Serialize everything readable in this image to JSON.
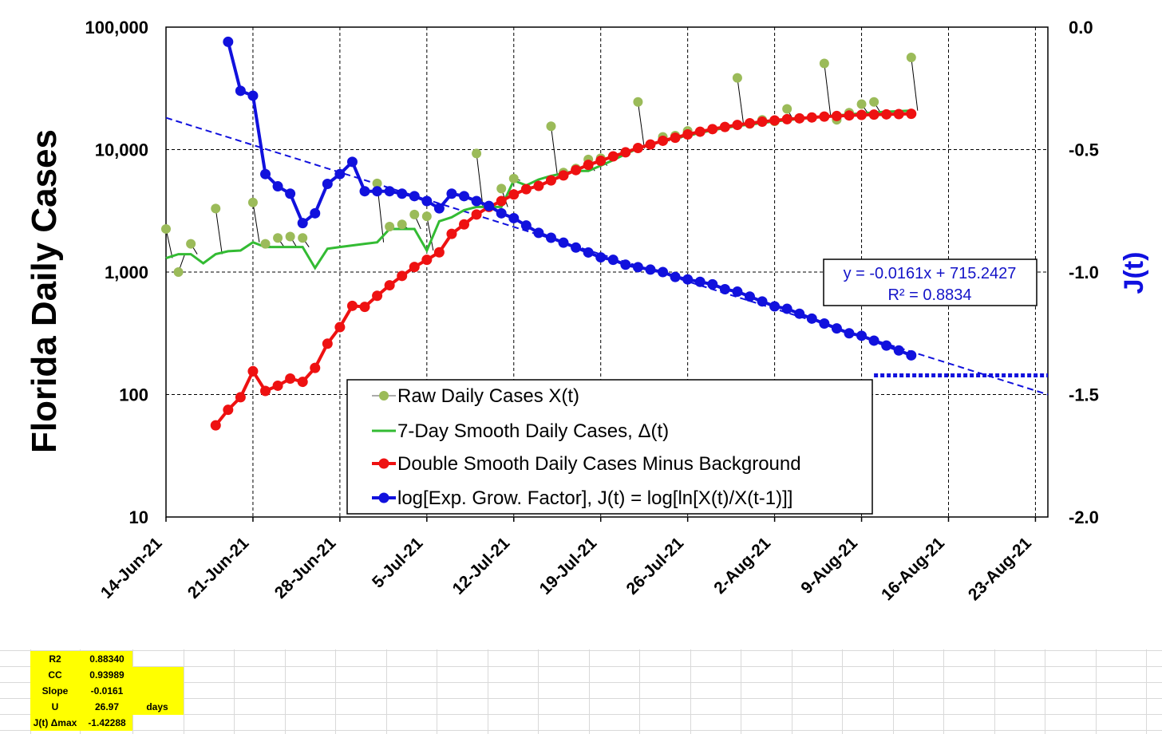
{
  "chart_data": {
    "type": "line",
    "ylabel": "Florida Daily Cases",
    "y2label": "J(t)",
    "y_scale": "log",
    "ylim": [
      10,
      100000
    ],
    "y_ticks": [
      "10",
      "100",
      "1,000",
      "10,000",
      "100,000"
    ],
    "y2lim": [
      -2.0,
      0.0
    ],
    "y2_ticks": [
      "-2.0",
      "-1.5",
      "-1.0",
      "-0.5",
      "0.0"
    ],
    "xlim": [
      "2021-06-14",
      "2021-08-24"
    ],
    "x_ticks": [
      "14-Jun-21",
      "21-Jun-21",
      "28-Jun-21",
      "5-Jul-21",
      "12-Jul-21",
      "19-Jul-21",
      "26-Jul-21",
      "2-Aug-21",
      "9-Aug-21",
      "16-Aug-21",
      "23-Aug-21"
    ],
    "grid": true,
    "legend_position": "bottom-center",
    "series": [
      {
        "name": "Raw Daily Cases X(t)",
        "color": "#9bbb59",
        "axis": "left",
        "points": [
          [
            "2021-06-14",
            2250
          ],
          [
            "2021-06-15",
            1000
          ],
          [
            "2021-06-16",
            1700
          ],
          [
            "2021-06-18",
            3300
          ],
          [
            "2021-06-21",
            3700
          ],
          [
            "2021-06-22",
            1700
          ],
          [
            "2021-06-23",
            1900
          ],
          [
            "2021-06-24",
            1950
          ],
          [
            "2021-06-25",
            1900
          ],
          [
            "2021-07-01",
            5300
          ],
          [
            "2021-07-02",
            2350
          ],
          [
            "2021-07-03",
            2450
          ],
          [
            "2021-07-04",
            2950
          ],
          [
            "2021-07-05",
            2850
          ],
          [
            "2021-07-09",
            9300
          ],
          [
            "2021-07-11",
            4800
          ],
          [
            "2021-07-12",
            5800
          ],
          [
            "2021-07-15",
            15500
          ],
          [
            "2021-07-16",
            6500
          ],
          [
            "2021-07-17",
            7000
          ],
          [
            "2021-07-18",
            8300
          ],
          [
            "2021-07-19",
            8500
          ],
          [
            "2021-07-22",
            24500
          ],
          [
            "2021-07-24",
            12700
          ],
          [
            "2021-07-25",
            13000
          ],
          [
            "2021-07-26",
            14200
          ],
          [
            "2021-07-30",
            38500
          ],
          [
            "2021-07-31",
            16200
          ],
          [
            "2021-08-01",
            17500
          ],
          [
            "2021-08-02",
            17000
          ],
          [
            "2021-08-03",
            21500
          ],
          [
            "2021-08-06",
            50500
          ],
          [
            "2021-08-07",
            17500
          ],
          [
            "2021-08-08",
            20000
          ],
          [
            "2021-08-09",
            23500
          ],
          [
            "2021-08-10",
            24500
          ],
          [
            "2021-08-13",
            56500
          ]
        ]
      },
      {
        "name": "7-Day Smooth Daily Cases, Δ(t)",
        "color": "#33bb33",
        "axis": "left",
        "points": [
          [
            "2021-06-14",
            1300
          ],
          [
            "2021-06-15",
            1400
          ],
          [
            "2021-06-16",
            1400
          ],
          [
            "2021-06-17",
            1180
          ],
          [
            "2021-06-18",
            1400
          ],
          [
            "2021-06-19",
            1480
          ],
          [
            "2021-06-20",
            1500
          ],
          [
            "2021-06-21",
            1750
          ],
          [
            "2021-06-22",
            1600
          ],
          [
            "2021-06-23",
            1600
          ],
          [
            "2021-06-24",
            1600
          ],
          [
            "2021-06-25",
            1600
          ],
          [
            "2021-06-26",
            1080
          ],
          [
            "2021-06-27",
            1550
          ],
          [
            "2021-06-28",
            1600
          ],
          [
            "2021-06-29",
            1650
          ],
          [
            "2021-06-30",
            1700
          ],
          [
            "2021-07-01",
            1750
          ],
          [
            "2021-07-02",
            2250
          ],
          [
            "2021-07-03",
            2250
          ],
          [
            "2021-07-04",
            2250
          ],
          [
            "2021-07-05",
            1500
          ],
          [
            "2021-07-06",
            2600
          ],
          [
            "2021-07-07",
            2800
          ],
          [
            "2021-07-08",
            3200
          ],
          [
            "2021-07-09",
            3400
          ],
          [
            "2021-07-10",
            3400
          ],
          [
            "2021-07-11",
            3400
          ],
          [
            "2021-07-12",
            5600
          ],
          [
            "2021-07-13",
            5100
          ],
          [
            "2021-07-14",
            5700
          ],
          [
            "2021-07-15",
            6100
          ],
          [
            "2021-07-16",
            6400
          ],
          [
            "2021-07-17",
            6700
          ],
          [
            "2021-07-18",
            6700
          ],
          [
            "2021-07-19",
            7400
          ],
          [
            "2021-07-20",
            8200
          ],
          [
            "2021-07-21",
            9200
          ],
          [
            "2021-07-22",
            10200
          ],
          [
            "2021-07-23",
            11000
          ],
          [
            "2021-07-24",
            11700
          ],
          [
            "2021-07-25",
            12400
          ],
          [
            "2021-07-26",
            13000
          ],
          [
            "2021-07-27",
            13700
          ],
          [
            "2021-07-28",
            14400
          ],
          [
            "2021-07-29",
            15000
          ],
          [
            "2021-07-30",
            15600
          ],
          [
            "2021-07-31",
            16000
          ],
          [
            "2021-08-01",
            16500
          ],
          [
            "2021-08-02",
            17000
          ],
          [
            "2021-08-03",
            17400
          ],
          [
            "2021-08-04",
            17800
          ],
          [
            "2021-08-05",
            18200
          ],
          [
            "2021-08-06",
            18600
          ],
          [
            "2021-08-07",
            19000
          ],
          [
            "2021-08-08",
            19400
          ],
          [
            "2021-08-09",
            19800
          ],
          [
            "2021-08-10",
            20100
          ],
          [
            "2021-08-11",
            20400
          ],
          [
            "2021-08-12",
            20600
          ],
          [
            "2021-08-13",
            20800
          ]
        ]
      },
      {
        "name": "Double Smooth Daily Cases Minus Background",
        "color": "#ee1111",
        "axis": "left",
        "points": [
          [
            "2021-06-18",
            56
          ],
          [
            "2021-06-19",
            75
          ],
          [
            "2021-06-20",
            95
          ],
          [
            "2021-06-21",
            155
          ],
          [
            "2021-06-22",
            107
          ],
          [
            "2021-06-23",
            118
          ],
          [
            "2021-06-24",
            135
          ],
          [
            "2021-06-25",
            127
          ],
          [
            "2021-06-26",
            165
          ],
          [
            "2021-06-27",
            260
          ],
          [
            "2021-06-28",
            355
          ],
          [
            "2021-06-29",
            530
          ],
          [
            "2021-06-30",
            520
          ],
          [
            "2021-07-01",
            640
          ],
          [
            "2021-07-02",
            780
          ],
          [
            "2021-07-03",
            930
          ],
          [
            "2021-07-04",
            1100
          ],
          [
            "2021-07-05",
            1260
          ],
          [
            "2021-07-06",
            1450
          ],
          [
            "2021-07-07",
            2050
          ],
          [
            "2021-07-08",
            2450
          ],
          [
            "2021-07-09",
            2950
          ],
          [
            "2021-07-10",
            3400
          ],
          [
            "2021-07-11",
            3800
          ],
          [
            "2021-07-12",
            4300
          ],
          [
            "2021-07-13",
            4750
          ],
          [
            "2021-07-14",
            5050
          ],
          [
            "2021-07-15",
            5600
          ],
          [
            "2021-07-16",
            6150
          ],
          [
            "2021-07-17",
            6800
          ],
          [
            "2021-07-18",
            7500
          ],
          [
            "2021-07-19",
            8100
          ],
          [
            "2021-07-20",
            8800
          ],
          [
            "2021-07-21",
            9500
          ],
          [
            "2021-07-22",
            10300
          ],
          [
            "2021-07-23",
            11000
          ],
          [
            "2021-07-24",
            11800
          ],
          [
            "2021-07-25",
            12500
          ],
          [
            "2021-07-26",
            13300
          ],
          [
            "2021-07-27",
            14000
          ],
          [
            "2021-07-28",
            14700
          ],
          [
            "2021-07-29",
            15300
          ],
          [
            "2021-07-30",
            15900
          ],
          [
            "2021-07-31",
            16400
          ],
          [
            "2021-08-01",
            16900
          ],
          [
            "2021-08-02",
            17300
          ],
          [
            "2021-08-03",
            17700
          ],
          [
            "2021-08-04",
            18000
          ],
          [
            "2021-08-05",
            18300
          ],
          [
            "2021-08-06",
            18600
          ],
          [
            "2021-08-07",
            18800
          ],
          [
            "2021-08-08",
            19000
          ],
          [
            "2021-08-09",
            19200
          ],
          [
            "2021-08-10",
            19300
          ],
          [
            "2021-08-11",
            19400
          ],
          [
            "2021-08-12",
            19500
          ],
          [
            "2021-08-13",
            19600
          ]
        ]
      },
      {
        "name": "log[Exp. Grow. Factor], J(t) = log[ln[X(t)/X(t-1)]]",
        "color": "#1111dd",
        "axis": "right",
        "points": [
          [
            "2021-06-19",
            -0.06
          ],
          [
            "2021-06-20",
            -0.26
          ],
          [
            "2021-06-21",
            -0.28
          ],
          [
            "2021-06-22",
            -0.6
          ],
          [
            "2021-06-23",
            -0.65
          ],
          [
            "2021-06-24",
            -0.68
          ],
          [
            "2021-06-25",
            -0.8
          ],
          [
            "2021-06-26",
            -0.76
          ],
          [
            "2021-06-27",
            -0.64
          ],
          [
            "2021-06-28",
            -0.6
          ],
          [
            "2021-06-29",
            -0.55
          ],
          [
            "2021-06-30",
            -0.67
          ],
          [
            "2021-07-01",
            -0.67
          ],
          [
            "2021-07-02",
            -0.67
          ],
          [
            "2021-07-03",
            -0.68
          ],
          [
            "2021-07-04",
            -0.69
          ],
          [
            "2021-07-05",
            -0.71
          ],
          [
            "2021-07-06",
            -0.74
          ],
          [
            "2021-07-07",
            -0.68
          ],
          [
            "2021-07-08",
            -0.69
          ],
          [
            "2021-07-09",
            -0.71
          ],
          [
            "2021-07-10",
            -0.73
          ],
          [
            "2021-07-11",
            -0.76
          ],
          [
            "2021-07-12",
            -0.78
          ],
          [
            "2021-07-13",
            -0.81
          ],
          [
            "2021-07-14",
            -0.84
          ],
          [
            "2021-07-15",
            -0.86
          ],
          [
            "2021-07-16",
            -0.88
          ],
          [
            "2021-07-17",
            -0.9
          ],
          [
            "2021-07-18",
            -0.92
          ],
          [
            "2021-07-19",
            -0.94
          ],
          [
            "2021-07-20",
            -0.95
          ],
          [
            "2021-07-21",
            -0.97
          ],
          [
            "2021-07-22",
            -0.98
          ],
          [
            "2021-07-23",
            -0.99
          ],
          [
            "2021-07-24",
            -1.0
          ],
          [
            "2021-07-25",
            -1.02
          ],
          [
            "2021-07-26",
            -1.03
          ],
          [
            "2021-07-27",
            -1.04
          ],
          [
            "2021-07-28",
            -1.05
          ],
          [
            "2021-07-29",
            -1.07
          ],
          [
            "2021-07-30",
            -1.08
          ],
          [
            "2021-07-31",
            -1.1
          ],
          [
            "2021-08-01",
            -1.12
          ],
          [
            "2021-08-02",
            -1.14
          ],
          [
            "2021-08-03",
            -1.15
          ],
          [
            "2021-08-04",
            -1.17
          ],
          [
            "2021-08-05",
            -1.19
          ],
          [
            "2021-08-06",
            -1.21
          ],
          [
            "2021-08-07",
            -1.23
          ],
          [
            "2021-08-08",
            -1.25
          ],
          [
            "2021-08-09",
            -1.26
          ],
          [
            "2021-08-10",
            -1.28
          ],
          [
            "2021-08-11",
            -1.3
          ],
          [
            "2021-08-12",
            -1.32
          ],
          [
            "2021-08-13",
            -1.34
          ]
        ]
      }
    ],
    "trendline": {
      "axis": "right",
      "color": "#1111dd",
      "start": [
        "2021-06-14",
        -0.37
      ],
      "end": [
        "2021-08-24",
        -1.5
      ],
      "equation": "y = -0.0161x + 715.2427",
      "r_squared": "R² = 0.8834"
    },
    "threshold": {
      "axis": "right",
      "color": "#1111dd",
      "from": "2021-08-10",
      "to": "2021-08-24",
      "value": -1.422
    }
  },
  "stats_table": {
    "highlight_color": "#ffff00",
    "rows": [
      {
        "label": "R2",
        "value": "0.88340",
        "unit": ""
      },
      {
        "label": "CC",
        "value": "0.93989",
        "unit": ""
      },
      {
        "label": "Slope",
        "value": "-0.0161",
        "unit": ""
      },
      {
        "label": "U",
        "value": "26.97",
        "unit": "days"
      },
      {
        "label": "J(t) Δmax",
        "value": "-1.42288",
        "unit": ""
      }
    ]
  }
}
